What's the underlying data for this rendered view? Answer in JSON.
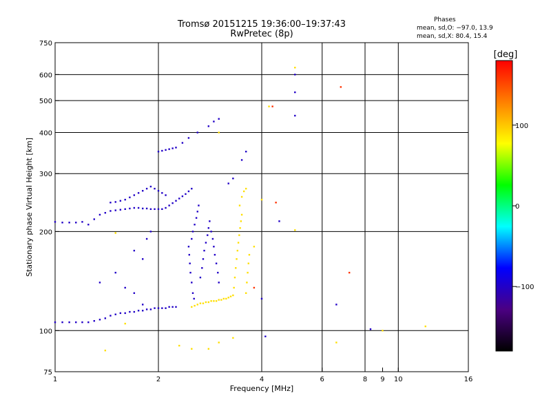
{
  "chart_data": {
    "type": "scatter",
    "title": "Tromsø 20151215 19:36:00–19:37:43",
    "subtitle": "RwPretec (8p)",
    "xlabel": "Frequency [MHz]",
    "ylabel": "Stationary phase Virtual Height [km]",
    "x_scale": "log",
    "y_scale": "log",
    "xlim": [
      1,
      16
    ],
    "ylim": [
      75,
      750
    ],
    "x_ticks": [
      1,
      2,
      4,
      6,
      8,
      9,
      10,
      16
    ],
    "x_tick_labels": [
      "1",
      "2",
      "4",
      "6",
      "8",
      "9",
      "10",
      "16"
    ],
    "x_grid": [
      1,
      2,
      4,
      6,
      8,
      10,
      16
    ],
    "y_ticks": [
      75,
      100,
      200,
      300,
      400,
      500,
      600,
      750
    ],
    "y_tick_labels": [
      "75",
      "100",
      "200",
      "300",
      "400",
      "500",
      "600",
      "750"
    ],
    "y_grid": [
      100,
      200,
      300,
      400,
      500,
      600
    ],
    "grid": true,
    "colorbar": {
      "title": "[deg]",
      "min": -180,
      "max": 180,
      "ticks": [
        -100,
        0,
        100
      ],
      "tick_labels": [
        "−100",
        "0",
        "100"
      ],
      "colors": [
        "#000000",
        "#4b0082",
        "#0000ff",
        "#00ffff",
        "#00ff00",
        "#ffff00",
        "#ff8000",
        "#ff0000"
      ]
    },
    "legend": {
      "title": "Phases",
      "lines": [
        "mean, sd,O: −97.0, 13.9",
        "mean, sd,X: 80.4, 15.4"
      ],
      "placement": "top-right"
    },
    "series": [
      {
        "name": "O",
        "phase": -100,
        "points": [
          [
            1.0,
            106
          ],
          [
            1.05,
            106
          ],
          [
            1.1,
            106
          ],
          [
            1.15,
            106
          ],
          [
            1.2,
            106
          ],
          [
            1.25,
            106
          ],
          [
            1.3,
            107
          ],
          [
            1.35,
            108
          ],
          [
            1.4,
            109
          ],
          [
            1.45,
            111
          ],
          [
            1.5,
            112
          ],
          [
            1.55,
            113
          ],
          [
            1.6,
            113
          ],
          [
            1.65,
            114
          ],
          [
            1.7,
            114
          ],
          [
            1.75,
            115
          ],
          [
            1.8,
            115
          ],
          [
            1.85,
            116
          ],
          [
            1.9,
            116
          ],
          [
            1.95,
            117
          ],
          [
            2.0,
            117
          ],
          [
            2.05,
            117
          ],
          [
            2.1,
            117
          ],
          [
            2.15,
            118
          ],
          [
            2.2,
            118
          ],
          [
            2.25,
            118
          ],
          [
            1.0,
            214
          ],
          [
            1.05,
            213
          ],
          [
            1.1,
            213
          ],
          [
            1.15,
            213
          ],
          [
            1.2,
            214
          ],
          [
            1.3,
            218
          ],
          [
            1.35,
            225
          ],
          [
            1.4,
            228
          ],
          [
            1.45,
            231
          ],
          [
            1.5,
            232
          ],
          [
            1.55,
            233
          ],
          [
            1.6,
            234
          ],
          [
            1.65,
            235
          ],
          [
            1.7,
            236
          ],
          [
            1.75,
            236
          ],
          [
            1.8,
            235
          ],
          [
            1.85,
            235
          ],
          [
            1.9,
            234
          ],
          [
            1.95,
            234
          ],
          [
            2.0,
            234
          ],
          [
            2.05,
            234
          ],
          [
            2.1,
            236
          ],
          [
            2.15,
            240
          ],
          [
            2.2,
            244
          ],
          [
            2.25,
            248
          ],
          [
            2.3,
            252
          ],
          [
            2.35,
            256
          ],
          [
            2.4,
            260
          ],
          [
            2.45,
            265
          ],
          [
            2.5,
            270
          ],
          [
            1.45,
            245
          ],
          [
            1.5,
            246
          ],
          [
            1.55,
            248
          ],
          [
            1.6,
            250
          ],
          [
            1.65,
            254
          ],
          [
            1.7,
            258
          ],
          [
            1.75,
            262
          ],
          [
            1.8,
            266
          ],
          [
            1.85,
            270
          ],
          [
            1.9,
            274
          ],
          [
            1.95,
            270
          ],
          [
            2.0,
            266
          ],
          [
            2.05,
            262
          ],
          [
            2.1,
            258
          ],
          [
            2.0,
            350
          ],
          [
            2.05,
            352
          ],
          [
            2.1,
            354
          ],
          [
            2.15,
            356
          ],
          [
            2.2,
            358
          ],
          [
            2.25,
            360
          ],
          [
            2.35,
            372
          ],
          [
            2.45,
            385
          ],
          [
            2.6,
            400
          ],
          [
            2.8,
            418
          ],
          [
            2.9,
            432
          ],
          [
            3.0,
            440
          ],
          [
            2.45,
            180
          ],
          [
            2.46,
            170
          ],
          [
            2.47,
            160
          ],
          [
            2.48,
            150
          ],
          [
            2.5,
            140
          ],
          [
            2.52,
            130
          ],
          [
            2.54,
            125
          ],
          [
            2.5,
            190
          ],
          [
            2.52,
            200
          ],
          [
            2.55,
            210
          ],
          [
            2.58,
            220
          ],
          [
            2.6,
            230
          ],
          [
            2.62,
            240
          ],
          [
            2.65,
            145
          ],
          [
            2.68,
            155
          ],
          [
            2.7,
            165
          ],
          [
            2.72,
            175
          ],
          [
            2.75,
            185
          ],
          [
            2.78,
            195
          ],
          [
            2.8,
            205
          ],
          [
            2.82,
            215
          ],
          [
            2.85,
            200
          ],
          [
            2.88,
            190
          ],
          [
            2.9,
            180
          ],
          [
            2.92,
            170
          ],
          [
            2.95,
            160
          ],
          [
            2.98,
            150
          ],
          [
            3.0,
            140
          ],
          [
            1.25,
            210
          ],
          [
            1.35,
            140
          ],
          [
            1.5,
            150
          ],
          [
            1.6,
            135
          ],
          [
            1.7,
            175
          ],
          [
            1.8,
            165
          ],
          [
            1.85,
            190
          ],
          [
            1.9,
            200
          ],
          [
            1.7,
            130
          ],
          [
            1.8,
            120
          ],
          [
            3.2,
            280
          ],
          [
            3.3,
            290
          ],
          [
            3.5,
            330
          ],
          [
            3.6,
            350
          ],
          [
            4.0,
            125
          ],
          [
            4.5,
            215
          ],
          [
            5.0,
            600
          ],
          [
            5.0,
            530
          ],
          [
            5.0,
            450
          ],
          [
            6.6,
            120
          ],
          [
            8.3,
            101
          ],
          [
            4.1,
            96
          ]
        ]
      },
      {
        "name": "X",
        "phase": 90,
        "points": [
          [
            2.5,
            118
          ],
          [
            2.55,
            119
          ],
          [
            2.6,
            120
          ],
          [
            2.65,
            121
          ],
          [
            2.7,
            121
          ],
          [
            2.75,
            122
          ],
          [
            2.8,
            122
          ],
          [
            2.85,
            123
          ],
          [
            2.9,
            123
          ],
          [
            2.95,
            123
          ],
          [
            3.0,
            124
          ],
          [
            3.05,
            124
          ],
          [
            3.1,
            125
          ],
          [
            3.15,
            125
          ],
          [
            3.2,
            126
          ],
          [
            3.25,
            127
          ],
          [
            3.3,
            128
          ],
          [
            3.32,
            135
          ],
          [
            3.34,
            145
          ],
          [
            3.36,
            155
          ],
          [
            3.38,
            165
          ],
          [
            3.4,
            175
          ],
          [
            3.42,
            185
          ],
          [
            3.44,
            195
          ],
          [
            3.46,
            205
          ],
          [
            3.48,
            215
          ],
          [
            3.5,
            225
          ],
          [
            3.45,
            240
          ],
          [
            3.5,
            255
          ],
          [
            3.55,
            265
          ],
          [
            3.6,
            270
          ],
          [
            3.6,
            130
          ],
          [
            3.62,
            140
          ],
          [
            3.64,
            150
          ],
          [
            3.66,
            160
          ],
          [
            3.68,
            170
          ],
          [
            2.3,
            90
          ],
          [
            2.5,
            88
          ],
          [
            2.8,
            88
          ],
          [
            3.0,
            92
          ],
          [
            3.3,
            95
          ],
          [
            1.4,
            87
          ],
          [
            1.6,
            105
          ],
          [
            1.5,
            198
          ],
          [
            3.8,
            180
          ],
          [
            4.0,
            250
          ],
          [
            4.2,
            480
          ],
          [
            5.0,
            630
          ],
          [
            5.0,
            202
          ],
          [
            6.6,
            92
          ],
          [
            9.0,
            100
          ],
          [
            12.0,
            103
          ],
          [
            3.0,
            400
          ]
        ]
      },
      {
        "name": "other",
        "phase": 160,
        "points": [
          [
            6.8,
            550
          ],
          [
            7.2,
            150
          ],
          [
            4.4,
            245
          ],
          [
            4.3,
            480
          ],
          [
            3.8,
            135
          ]
        ]
      }
    ]
  }
}
